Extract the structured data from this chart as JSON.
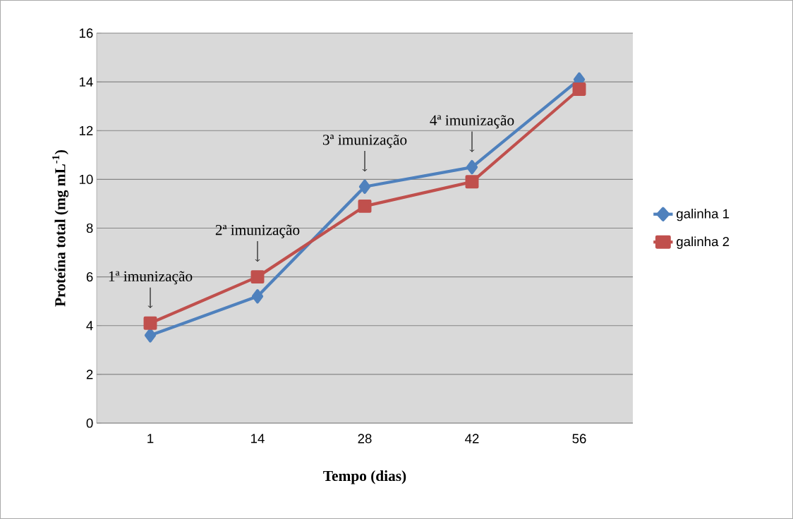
{
  "chart_data": {
    "type": "line",
    "xlabel": "Tempo (dias)",
    "ylabel": "Proteína total (mg mL$^{-1}$)",
    "categories": [
      "1",
      "14",
      "28",
      "42",
      "56"
    ],
    "series": [
      {
        "name": "galinha 1",
        "color": "#4f81bd",
        "marker": "diamond",
        "values": [
          3.6,
          5.2,
          9.7,
          10.5,
          14.1
        ]
      },
      {
        "name": "galinha 2",
        "color": "#c0504d",
        "marker": "square",
        "values": [
          4.1,
          6.0,
          8.9,
          9.9,
          13.7
        ]
      }
    ],
    "ylim": [
      0,
      16
    ],
    "yticks": [
      0,
      2,
      4,
      6,
      8,
      10,
      12,
      14,
      16
    ],
    "grid": "y",
    "legend": "right",
    "annotations": [
      {
        "text": "1ª imunização",
        "x": "1",
        "y": 4.1
      },
      {
        "text": "2ª imunização",
        "x": "14",
        "y": 6.0
      },
      {
        "text": "3ª imunização",
        "x": "28",
        "y": 9.7
      },
      {
        "text": "4ª imunização",
        "x": "42",
        "y": 10.5
      }
    ]
  }
}
